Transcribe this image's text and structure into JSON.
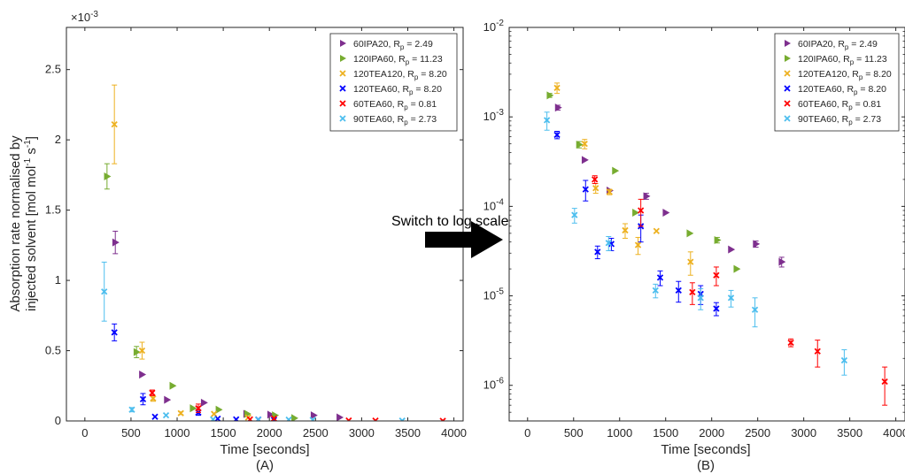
{
  "annotation": {
    "text": "Switch to log scale"
  },
  "colors": {
    "60IPA20": "#7E2F8E",
    "120IPA60": "#77AC30",
    "120TEA120": "#EDB120",
    "120TEA60": "#0000FF",
    "60TEA60": "#FF0000",
    "90TEA60": "#4DBEEE",
    "axis": "#262626",
    "arrow": "#000000"
  },
  "chart_data": [
    {
      "type": "scatter",
      "panel_label": "(A)",
      "xlabel": "Time [seconds]",
      "ylabel_line1": "Absorption rate normalised by",
      "ylabel_line2": "injected solvent [mol mol",
      "ylabel_unit_exp1": "-1",
      "ylabel_unit_s": " s",
      "ylabel_unit_exp2": "-1",
      "ylabel_close": "]",
      "y_multiplier_base": "×10",
      "y_multiplier_exp": "-3",
      "xlim": [
        -200,
        4100
      ],
      "ylim": [
        0,
        2.8
      ],
      "y_scale": "linear",
      "xticks": [
        0,
        500,
        1000,
        1500,
        2000,
        2500,
        3000,
        3500,
        4000
      ],
      "yticks": [
        0,
        0.5,
        1,
        1.5,
        2,
        2.5
      ],
      "ytick_labels": [
        "0",
        "0.5",
        "1",
        "1.5",
        "2",
        "2.5"
      ],
      "legend_position": "top-right",
      "series": [
        {
          "name": "60IPA20",
          "rp": "2.49",
          "marker": "triangle-right",
          "points": [
            [
              330,
              1.27,
              0.08
            ],
            [
              620,
              0.33,
              0
            ],
            [
              890,
              0.15,
              0
            ],
            [
              1290,
              0.13,
              0
            ],
            [
              1750,
              0.05,
              0
            ],
            [
              2010,
              0.045,
              0
            ],
            [
              2480,
              0.04,
              0
            ],
            [
              2760,
              0.025,
              0
            ]
          ]
        },
        {
          "name": "120IPA60",
          "rp": "11.23",
          "marker": "triangle-right",
          "points": [
            [
              240,
              1.74,
              0.09
            ],
            [
              560,
              0.49,
              0.04
            ],
            [
              950,
              0.25,
              0
            ],
            [
              1170,
              0.09,
              0
            ],
            [
              1450,
              0.08,
              0
            ],
            [
              1760,
              0.05,
              0
            ],
            [
              2060,
              0.04,
              0
            ],
            [
              2270,
              0.02,
              0
            ]
          ]
        },
        {
          "name": "120TEA120",
          "rp": "8.20",
          "marker": "x",
          "points": [
            [
              320,
              2.11,
              0.28
            ],
            [
              620,
              0.5,
              0.06
            ],
            [
              740,
              0.16,
              0.02
            ],
            [
              1040,
              0.055,
              0.01
            ],
            [
              1400,
              0.05,
              0
            ],
            [
              1770,
              0.024,
              0
            ]
          ]
        },
        {
          "name": "120TEA60",
          "rp": "8.20",
          "marker": "x",
          "points": [
            [
              320,
              0.63,
              0.06
            ],
            [
              630,
              0.155,
              0.04
            ],
            [
              760,
              0.03,
              0
            ],
            [
              1230,
              0.06,
              0.02
            ],
            [
              1440,
              0.016,
              0
            ],
            [
              1640,
              0.011,
              0
            ],
            [
              1880,
              0.01,
              0
            ],
            [
              2050,
              0.007,
              0
            ]
          ]
        },
        {
          "name": "60TEA60",
          "rp": "0.81",
          "marker": "x",
          "points": [
            [
              730,
              0.2,
              0.02
            ],
            [
              1230,
              0.09,
              0.03
            ],
            [
              1790,
              0.011,
              0
            ],
            [
              2050,
              0.017,
              0
            ],
            [
              2860,
              0.003,
              0
            ],
            [
              3150,
              0.0024,
              0
            ],
            [
              3880,
              0.0011,
              0
            ]
          ]
        },
        {
          "name": "90TEA60",
          "rp": "2.73",
          "marker": "x",
          "points": [
            [
              210,
              0.92,
              0.21
            ],
            [
              510,
              0.08,
              0.015
            ],
            [
              880,
              0.04,
              0
            ],
            [
              1390,
              0.011,
              0
            ],
            [
              1880,
              0.009,
              0
            ],
            [
              2210,
              0.009,
              0
            ],
            [
              2470,
              0.007,
              0
            ],
            [
              3440,
              0.0019,
              0
            ]
          ]
        }
      ]
    },
    {
      "type": "scatter",
      "panel_label": "(B)",
      "xlabel": "Time [seconds]",
      "xlim": [
        -200,
        4100
      ],
      "ylim": [
        4e-07,
        0.01
      ],
      "y_scale": "log",
      "xticks": [
        0,
        500,
        1000,
        1500,
        2000,
        2500,
        3000,
        3500,
        4000
      ],
      "yticks": [
        1e-06,
        1e-05,
        0.0001,
        0.001,
        0.01
      ],
      "ytick_exps": [
        "-6",
        "-5",
        "-4",
        "-3",
        "-2"
      ],
      "ytick_base": "10",
      "legend_position": "top-right",
      "series": [
        {
          "name": "60IPA20",
          "rp": "2.49",
          "marker": "triangle-right",
          "points": [
            [
              330,
              0.00127,
              8e-05
            ],
            [
              620,
              0.00033,
              0
            ],
            [
              890,
              0.00015,
              0
            ],
            [
              1290,
              0.00013,
              1e-05
            ],
            [
              1500,
              8.5e-05,
              0
            ],
            [
              2210,
              3.3e-05,
              0
            ],
            [
              2480,
              3.8e-05,
              3e-06
            ],
            [
              2760,
              2.4e-05,
              3e-06
            ]
          ]
        },
        {
          "name": "120IPA60",
          "rp": "11.23",
          "marker": "triangle-right",
          "points": [
            [
              240,
              0.00174,
              9e-05
            ],
            [
              560,
              0.00049,
              4e-05
            ],
            [
              950,
              0.00025,
              0
            ],
            [
              1170,
              8.5e-05,
              0
            ],
            [
              1760,
              5e-05,
              0
            ],
            [
              2060,
              4.2e-05,
              3e-06
            ],
            [
              2270,
              2e-05,
              0
            ]
          ]
        },
        {
          "name": "120TEA120",
          "rp": "8.20",
          "marker": "x",
          "points": [
            [
              320,
              0.00211,
              0.00028
            ],
            [
              620,
              0.0005,
              6e-05
            ],
            [
              740,
              0.00016,
              2e-05
            ],
            [
              890,
              0.000145,
              1e-05
            ],
            [
              1060,
              5.4e-05,
              1e-05
            ],
            [
              1200,
              3.7e-05,
              8e-06
            ],
            [
              1400,
              5.3e-05,
              0
            ],
            [
              1770,
              2.4e-05,
              7e-06
            ]
          ]
        },
        {
          "name": "120TEA60",
          "rp": "8.20",
          "marker": "x",
          "points": [
            [
              320,
              0.00063,
              6e-05
            ],
            [
              630,
              0.000155,
              4e-05
            ],
            [
              760,
              3.1e-05,
              5e-06
            ],
            [
              910,
              3.8e-05,
              6e-06
            ],
            [
              1230,
              6e-05,
              2e-05
            ],
            [
              1440,
              1.6e-05,
              3e-06
            ],
            [
              1640,
              1.15e-05,
              3e-06
            ],
            [
              1880,
              1.05e-05,
              2.5e-06
            ],
            [
              2050,
              7.2e-06,
              1.2e-06
            ]
          ]
        },
        {
          "name": "60TEA60",
          "rp": "0.81",
          "marker": "x",
          "points": [
            [
              730,
              0.0002,
              2e-05
            ],
            [
              1230,
              9e-05,
              3e-05
            ],
            [
              1790,
              1.1e-05,
              3e-06
            ],
            [
              2050,
              1.7e-05,
              4e-06
            ],
            [
              2860,
              3e-06,
              3e-07
            ],
            [
              3150,
              2.4e-06,
              8e-07
            ],
            [
              3880,
              1.1e-06,
              5e-07
            ]
          ]
        },
        {
          "name": "90TEA60",
          "rp": "2.73",
          "marker": "x",
          "points": [
            [
              210,
              0.00092,
              0.00021
            ],
            [
              510,
              8e-05,
              1.5e-05
            ],
            [
              880,
              3.9e-05,
              7e-06
            ],
            [
              1390,
              1.15e-05,
              2e-06
            ],
            [
              1880,
              9.5e-06,
              2.5e-06
            ],
            [
              2210,
              9.5e-06,
              2e-06
            ],
            [
              2470,
              7e-06,
              2.5e-06
            ],
            [
              3440,
              1.9e-06,
              6e-07
            ]
          ]
        }
      ]
    }
  ]
}
